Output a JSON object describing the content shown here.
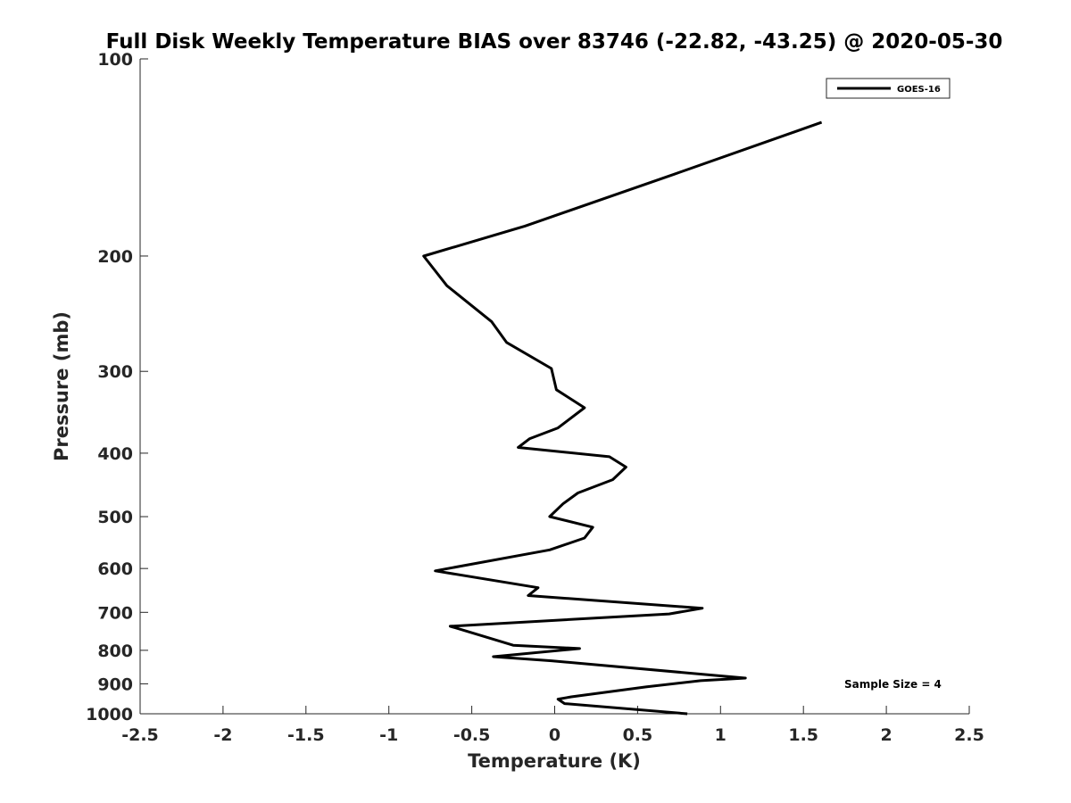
{
  "chart_data": {
    "type": "line",
    "title": "Full Disk Weekly Temperature BIAS over 83746 (-22.82, -43.25) @ 2020-05-30",
    "xlabel": "Temperature (K)",
    "ylabel": "Pressure (mb)",
    "xlim": [
      -2.5,
      2.5
    ],
    "ylim": [
      100,
      1000
    ],
    "y_scale": "log",
    "y_reversed": true,
    "x_ticks": [
      -2.5,
      -2,
      -1.5,
      -1,
      -0.5,
      0,
      0.5,
      1,
      1.5,
      2,
      2.5
    ],
    "x_tick_labels": [
      "-2.5",
      "-2",
      "-1.5",
      "-1",
      "-0.5",
      "0",
      "0.5",
      "1",
      "1.5",
      "2",
      "2.5"
    ],
    "y_ticks": [
      100,
      200,
      300,
      400,
      500,
      600,
      700,
      800,
      900,
      1000
    ],
    "y_tick_labels": [
      "100",
      "200",
      "300",
      "400",
      "500",
      "600",
      "700",
      "800",
      "900",
      "1000"
    ],
    "grid": false,
    "legend_position": "top-right",
    "series": [
      {
        "name": "GOES-16",
        "color": "#000000",
        "points": [
          [
            1.61,
            125
          ],
          [
            0.72,
            150
          ],
          [
            -0.18,
            180
          ],
          [
            -0.79,
            200
          ],
          [
            -0.65,
            222
          ],
          [
            -0.38,
            252
          ],
          [
            -0.29,
            271
          ],
          [
            -0.02,
            297
          ],
          [
            0.01,
            320
          ],
          [
            0.18,
            341
          ],
          [
            0.02,
            366
          ],
          [
            -0.15,
            380
          ],
          [
            -0.22,
            392
          ],
          [
            0.33,
            405
          ],
          [
            0.43,
            420
          ],
          [
            0.35,
            439
          ],
          [
            0.14,
            460
          ],
          [
            0.05,
            478
          ],
          [
            -0.03,
            500
          ],
          [
            0.23,
            519
          ],
          [
            0.18,
            539
          ],
          [
            -0.03,
            562
          ],
          [
            -0.72,
            605
          ],
          [
            -0.1,
            642
          ],
          [
            -0.16,
            660
          ],
          [
            0.89,
            690
          ],
          [
            0.69,
            704
          ],
          [
            -0.63,
            735
          ],
          [
            -0.25,
            786
          ],
          [
            0.15,
            795
          ],
          [
            -0.37,
            818
          ],
          [
            -0.02,
            830
          ],
          [
            1.15,
            882
          ],
          [
            0.88,
            890
          ],
          [
            0.55,
            910
          ],
          [
            0.1,
            942
          ],
          [
            0.02,
            950
          ],
          [
            0.06,
            965
          ],
          [
            0.8,
            1000
          ]
        ]
      }
    ],
    "annotations": [
      {
        "text": "Sample Size = 4",
        "position": "bottom-right"
      }
    ]
  }
}
